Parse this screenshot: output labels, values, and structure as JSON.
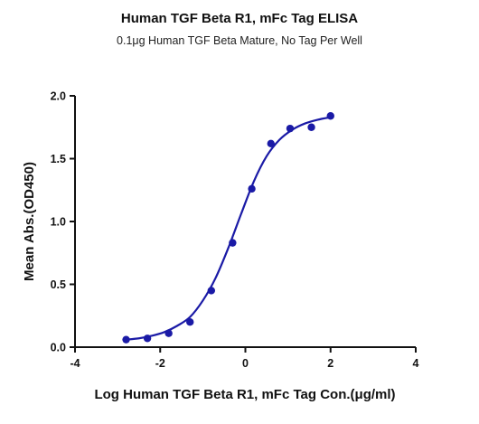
{
  "chart_data": {
    "type": "scatter",
    "title": "Human TGF Beta R1, mFc Tag ELISA",
    "subtitle": "0.1μg Human TGF Beta Mature, No Tag Per Well",
    "xlabel": "Log Human TGF Beta R1, mFc Tag Con.(μg/ml)",
    "ylabel": "Mean Abs.(OD450)",
    "xlim": [
      -4,
      4
    ],
    "ylim": [
      0,
      2.0
    ],
    "xticks": [
      -4,
      -2,
      0,
      2,
      4
    ],
    "yticks": [
      0.0,
      0.5,
      1.0,
      1.5,
      2.0
    ],
    "xtick_labels": [
      "-4",
      "-2",
      "0",
      "2",
      "4"
    ],
    "ytick_labels": [
      "0.0",
      "0.5",
      "1.0",
      "1.5",
      "2.0"
    ],
    "grid": false,
    "series": [
      {
        "kind": "points",
        "color": "#1a1aa6",
        "x": [
          -2.8,
          -2.3,
          -1.8,
          -1.3,
          -0.8,
          -0.3,
          0.15,
          0.6,
          1.05,
          1.55,
          2.0
        ],
        "y": [
          0.06,
          0.07,
          0.11,
          0.2,
          0.45,
          0.83,
          1.26,
          1.62,
          1.74,
          1.75,
          1.84
        ]
      },
      {
        "kind": "fit_curve",
        "color": "#1a1aa6",
        "x": [
          -2.8,
          -2.5,
          -2.2,
          -1.9,
          -1.6,
          -1.3,
          -1.0,
          -0.7,
          -0.4,
          -0.1,
          0.2,
          0.5,
          0.8,
          1.1,
          1.4,
          1.7,
          2.0
        ],
        "y": [
          0.06,
          0.07,
          0.09,
          0.12,
          0.17,
          0.24,
          0.37,
          0.55,
          0.79,
          1.06,
          1.32,
          1.52,
          1.65,
          1.73,
          1.78,
          1.81,
          1.83
        ]
      }
    ]
  }
}
